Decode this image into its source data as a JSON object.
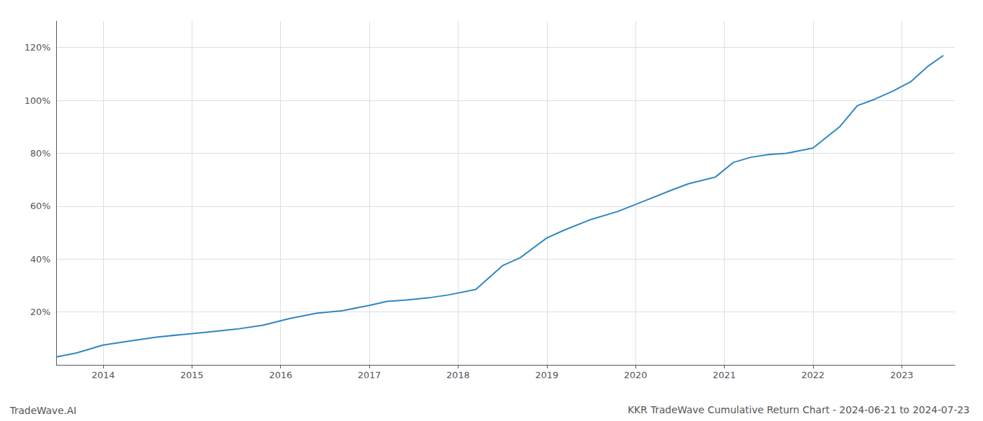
{
  "chart_data": {
    "type": "line",
    "title": "KKR TradeWave Cumulative Return Chart - 2024-06-21 to 2024-07-23",
    "annotations": [
      "TradeWave.AI"
    ],
    "color": "#2e86c1",
    "x": [
      2013.47,
      2013.7,
      2014.0,
      2014.3,
      2014.6,
      2014.9,
      2015.2,
      2015.5,
      2015.8,
      2016.1,
      2016.4,
      2016.7,
      2017.0,
      2017.2,
      2017.4,
      2017.7,
      2017.9,
      2018.2,
      2018.5,
      2018.7,
      2019.0,
      2019.2,
      2019.5,
      2019.8,
      2020.1,
      2020.4,
      2020.6,
      2020.9,
      2021.1,
      2021.3,
      2021.5,
      2021.7,
      2022.0,
      2022.3,
      2022.5,
      2022.7,
      2022.9,
      2023.1,
      2023.3,
      2023.47
    ],
    "values": [
      3.0,
      4.5,
      7.5,
      9.0,
      10.5,
      11.5,
      12.5,
      13.5,
      15.0,
      17.5,
      19.5,
      20.5,
      22.5,
      24.0,
      24.5,
      25.5,
      26.5,
      28.5,
      37.5,
      40.5,
      48.0,
      51.0,
      55.0,
      58.0,
      62.0,
      66.0,
      68.5,
      71.0,
      76.5,
      78.5,
      79.5,
      80.0,
      82.0,
      90.0,
      98.0,
      100.5,
      103.5,
      107.0,
      113.0,
      117.0
    ],
    "xlim": [
      2013.47,
      2023.6
    ],
    "ylim": [
      0,
      130
    ],
    "xticks": [
      2014,
      2015,
      2016,
      2017,
      2018,
      2019,
      2020,
      2021,
      2022,
      2023
    ],
    "yticks": [
      {
        "value": 20,
        "label": "20%"
      },
      {
        "value": 40,
        "label": "40%"
      },
      {
        "value": 60,
        "label": "60%"
      },
      {
        "value": 80,
        "label": "80%"
      },
      {
        "value": 100,
        "label": "100%"
      },
      {
        "value": 120,
        "label": "120%"
      }
    ],
    "grid": true
  }
}
